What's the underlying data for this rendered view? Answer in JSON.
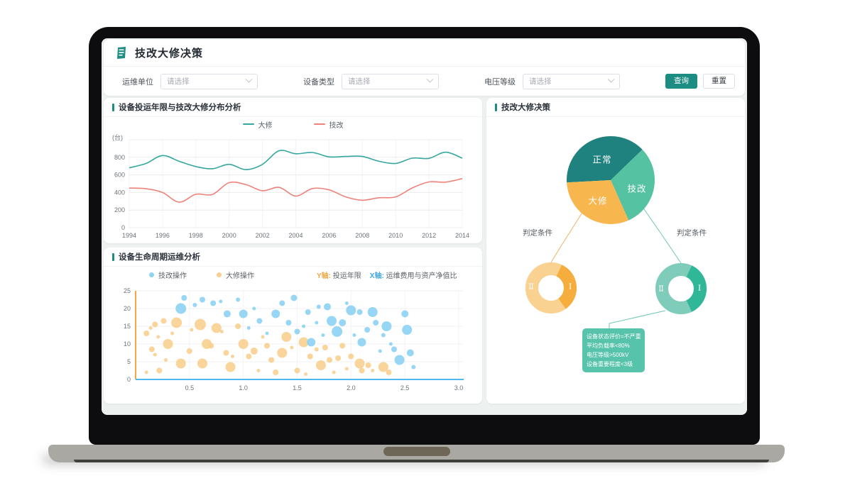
{
  "colors": {
    "accent": "#1d8c82",
    "screen_bg": "#edf1f0"
  },
  "app": {
    "title": "技改大修决策",
    "logo_icon": "ledger-icon"
  },
  "filters": {
    "fields": [
      {
        "label": "运维单位",
        "placeholder": "请选择"
      },
      {
        "label": "设备类型",
        "placeholder": "请选择"
      },
      {
        "label": "电压等级",
        "placeholder": "请选择"
      }
    ],
    "query_label": "查询",
    "reset_label": "重置"
  },
  "chart_data": [
    {
      "type": "line",
      "title": "设备投运年限与技改大修分布分析",
      "unit_label": "(台)",
      "x": [
        1994,
        1995,
        1996,
        1997,
        1998,
        1999,
        2000,
        2001,
        2002,
        2003,
        2004,
        2005,
        2006,
        2007,
        2008,
        2009,
        2010,
        2011,
        2012,
        2013,
        2014
      ],
      "x_ticks": [
        1994,
        1996,
        1998,
        2000,
        2002,
        2004,
        2006,
        2008,
        2010,
        2012,
        2014
      ],
      "ylim": [
        0,
        1000
      ],
      "y_ticks": [
        0,
        200,
        400,
        600,
        800
      ],
      "grid": true,
      "legend_position": "top",
      "series": [
        {
          "name": "大修",
          "color": "#35a79f",
          "values": [
            680,
            730,
            820,
            755,
            695,
            670,
            720,
            660,
            720,
            875,
            840,
            855,
            805,
            810,
            810,
            755,
            730,
            790,
            788,
            858,
            790
          ]
        },
        {
          "name": "技改",
          "color": "#ee827a",
          "values": [
            450,
            443,
            400,
            290,
            380,
            378,
            512,
            490,
            420,
            458,
            360,
            445,
            430,
            350,
            312,
            340,
            350,
            452,
            520,
            518,
            558
          ]
        }
      ]
    },
    {
      "type": "scatter",
      "title": "设备生命周期运维分析",
      "legend": [
        {
          "name": "技改操作",
          "color": "#8ed2f4"
        },
        {
          "name": "大修操作",
          "color": "#f9d092"
        }
      ],
      "axis_notes": [
        {
          "prefix": "Y轴:",
          "text": " 投运年限",
          "color": "#f5a742"
        },
        {
          "prefix": "X轴:",
          "text": " 运维费用与资产净值比",
          "color": "#41a7ea"
        }
      ],
      "xlim": [
        0,
        3.0
      ],
      "ylim": [
        0,
        25
      ],
      "x_ticks": [
        0.5,
        1.0,
        1.5,
        2.0,
        2.5,
        3.0
      ],
      "y_ticks": [
        0,
        5,
        10,
        15,
        20,
        25
      ],
      "y_axis_color": "#f5a742",
      "x_axis_color": "#4fb8ee",
      "series": [
        {
          "name": "技改操作",
          "color": "#8ed2f4",
          "points": [
            [
              0.45,
              23,
              4
            ],
            [
              0.42,
              20,
              7.5
            ],
            [
              0.55,
              21,
              3
            ],
            [
              0.62,
              22.5,
              4
            ],
            [
              0.72,
              21.5,
              4
            ],
            [
              0.79,
              22,
              2.5
            ],
            [
              0.85,
              18.5,
              5
            ],
            [
              0.95,
              22.5,
              3
            ],
            [
              1.0,
              18.5,
              6
            ],
            [
              1.05,
              14.5,
              2.5
            ],
            [
              1.1,
              20,
              2.5
            ],
            [
              1.15,
              16.5,
              4
            ],
            [
              1.22,
              13,
              2.5
            ],
            [
              1.3,
              18.5,
              6
            ],
            [
              1.36,
              21.5,
              4
            ],
            [
              1.42,
              16,
              4
            ],
            [
              1.47,
              23,
              4.5
            ],
            [
              1.5,
              13.5,
              4
            ],
            [
              1.56,
              15,
              2.5
            ],
            [
              1.6,
              19,
              4
            ],
            [
              1.63,
              10.5,
              6
            ],
            [
              1.68,
              16,
              2.5
            ],
            [
              1.7,
              20.5,
              3
            ],
            [
              1.74,
              12.5,
              2.5
            ],
            [
              1.78,
              20.5,
              5
            ],
            [
              1.82,
              16.5,
              7
            ],
            [
              1.87,
              13.5,
              7.5
            ],
            [
              1.92,
              16,
              5
            ],
            [
              1.96,
              21.5,
              2.5
            ],
            [
              2.0,
              19.5,
              7
            ],
            [
              2.03,
              12.5,
              2.5
            ],
            [
              2.08,
              19,
              4
            ],
            [
              2.1,
              10.5,
              6
            ],
            [
              2.15,
              14,
              4
            ],
            [
              2.2,
              19,
              7
            ],
            [
              2.23,
              16,
              4
            ],
            [
              2.27,
              8,
              2.5
            ],
            [
              2.3,
              12.5,
              3
            ],
            [
              2.33,
              15,
              7
            ],
            [
              2.37,
              10,
              2.5
            ],
            [
              2.4,
              8.5,
              4
            ],
            [
              2.45,
              5.5,
              7
            ],
            [
              2.5,
              18.5,
              5
            ],
            [
              2.52,
              14,
              7
            ],
            [
              2.55,
              7.5,
              5
            ],
            [
              2.58,
              3.5,
              3
            ]
          ]
        },
        {
          "name": "大修操作",
          "color": "#f9d092",
          "points": [
            [
              0.1,
              13,
              4
            ],
            [
              0.14,
              14.5,
              2.5
            ],
            [
              0.18,
              15.5,
              4
            ],
            [
              0.21,
              12,
              2.5
            ],
            [
              0.15,
              8.5,
              4
            ],
            [
              0.18,
              7,
              2.5
            ],
            [
              0.1,
              2,
              2.5
            ],
            [
              0.22,
              2.5,
              4
            ],
            [
              0.26,
              16.5,
              4
            ],
            [
              0.3,
              10,
              7
            ],
            [
              0.28,
              5.5,
              2.5
            ],
            [
              0.34,
              13,
              2.5
            ],
            [
              0.38,
              16,
              7.5
            ],
            [
              0.42,
              4.5,
              7
            ],
            [
              0.5,
              8,
              4
            ],
            [
              0.52,
              14,
              2.5
            ],
            [
              0.6,
              15.5,
              8
            ],
            [
              0.62,
              4.5,
              7
            ],
            [
              0.66,
              10,
              7
            ],
            [
              0.7,
              9.5,
              4
            ],
            [
              0.75,
              14.5,
              7
            ],
            [
              0.8,
              13.5,
              2.5
            ],
            [
              0.84,
              7.5,
              4
            ],
            [
              0.88,
              3.5,
              7
            ],
            [
              0.9,
              6.5,
              2.5
            ],
            [
              0.95,
              15,
              4
            ],
            [
              1.0,
              10,
              7
            ],
            [
              1.05,
              6.5,
              4
            ],
            [
              1.1,
              8,
              5
            ],
            [
              1.14,
              2.5,
              2.5
            ],
            [
              1.18,
              12,
              2.5
            ],
            [
              1.22,
              9.5,
              4
            ],
            [
              1.26,
              5.5,
              4
            ],
            [
              1.3,
              2,
              4
            ],
            [
              1.36,
              7.5,
              7
            ],
            [
              1.4,
              12,
              7
            ],
            [
              1.45,
              9,
              2.5
            ],
            [
              1.5,
              2.5,
              4
            ],
            [
              1.56,
              10.5,
              7
            ],
            [
              1.58,
              1.5,
              2.5
            ],
            [
              1.62,
              6.5,
              4
            ],
            [
              1.68,
              8.5,
              3
            ],
            [
              1.72,
              4,
              7
            ],
            [
              1.76,
              9,
              4
            ],
            [
              1.8,
              5.5,
              4
            ],
            [
              1.84,
              2,
              2.5
            ],
            [
              1.88,
              6,
              4
            ],
            [
              1.92,
              9.5,
              4
            ],
            [
              1.96,
              3,
              2.5
            ],
            [
              2.0,
              6.5,
              4
            ],
            [
              2.08,
              4.5,
              7
            ],
            [
              2.1,
              2.5,
              4
            ],
            [
              2.16,
              4,
              4
            ],
            [
              2.2,
              2.5,
              2.5
            ],
            [
              2.3,
              3.5,
              7
            ],
            [
              2.35,
              2,
              4
            ]
          ]
        }
      ]
    },
    {
      "type": "pie",
      "title": "技改大修决策",
      "pie": {
        "start_angle": 267,
        "slices": [
          {
            "label": "正常",
            "deg": 139,
            "color": "#20827e"
          },
          {
            "label": "技改",
            "deg": 110,
            "color": "#55c2a2"
          },
          {
            "label": "大修",
            "deg": 111,
            "color": "#f7b64e"
          }
        ]
      },
      "donuts": [
        {
          "label": "判定条件",
          "base_color": "#f9d191",
          "segment_color": "#f5ae3d",
          "segment": [
            25,
            145
          ],
          "inner_labels": [
            "Ⅱ",
            "Ⅰ"
          ]
        },
        {
          "label": "判定条件",
          "base_color": "#7fccba",
          "segment_color": "#2fb797",
          "segment": [
            25,
            155
          ],
          "inner_labels": [
            "Ⅱ",
            "Ⅰ"
          ]
        }
      ],
      "connector_colors": [
        "#f0b264",
        "#6cc7b2"
      ],
      "tooltip": {
        "color": "#58c3ab",
        "lines": [
          "设备状态评价=不严重",
          "平均负载率<80%",
          "电压等级>500kV",
          "设备重要程度<3级"
        ]
      }
    }
  ]
}
